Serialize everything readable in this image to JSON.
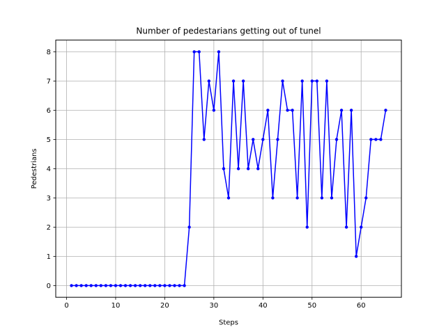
{
  "chart_data": {
    "type": "line",
    "title": "Number of pedestarians getting out of tunel",
    "xlabel": "Steps",
    "ylabel": "Pedestrians",
    "xlim": [
      -2.2,
      68.2
    ],
    "ylim": [
      -0.4,
      8.4
    ],
    "xticks": [
      0,
      10,
      20,
      30,
      40,
      50,
      60
    ],
    "yticks": [
      0,
      1,
      2,
      3,
      4,
      5,
      6,
      7,
      8
    ],
    "grid": true,
    "series": [
      {
        "color": "#0000ff",
        "marker": "circle",
        "x": [
          1,
          2,
          3,
          4,
          5,
          6,
          7,
          8,
          9,
          10,
          11,
          12,
          13,
          14,
          15,
          16,
          17,
          18,
          19,
          20,
          21,
          22,
          23,
          24,
          25,
          26,
          27,
          28,
          29,
          30,
          31,
          32,
          33,
          34,
          35,
          36,
          37,
          38,
          39,
          40,
          41,
          42,
          43,
          44,
          45,
          46,
          47,
          48,
          49,
          50,
          51,
          52,
          53,
          54,
          55,
          56,
          57,
          58,
          59,
          60,
          61,
          62,
          63,
          64,
          65
        ],
        "y": [
          0,
          0,
          0,
          0,
          0,
          0,
          0,
          0,
          0,
          0,
          0,
          0,
          0,
          0,
          0,
          0,
          0,
          0,
          0,
          0,
          0,
          0,
          0,
          0,
          2,
          8,
          8,
          5,
          7,
          6,
          8,
          4,
          3,
          7,
          4,
          7,
          4,
          5,
          4,
          5,
          6,
          3,
          5,
          7,
          6,
          6,
          3,
          7,
          2,
          7,
          7,
          3,
          7,
          3,
          5,
          6,
          2,
          6,
          1,
          2,
          3,
          5,
          5,
          5,
          6
        ]
      }
    ]
  }
}
